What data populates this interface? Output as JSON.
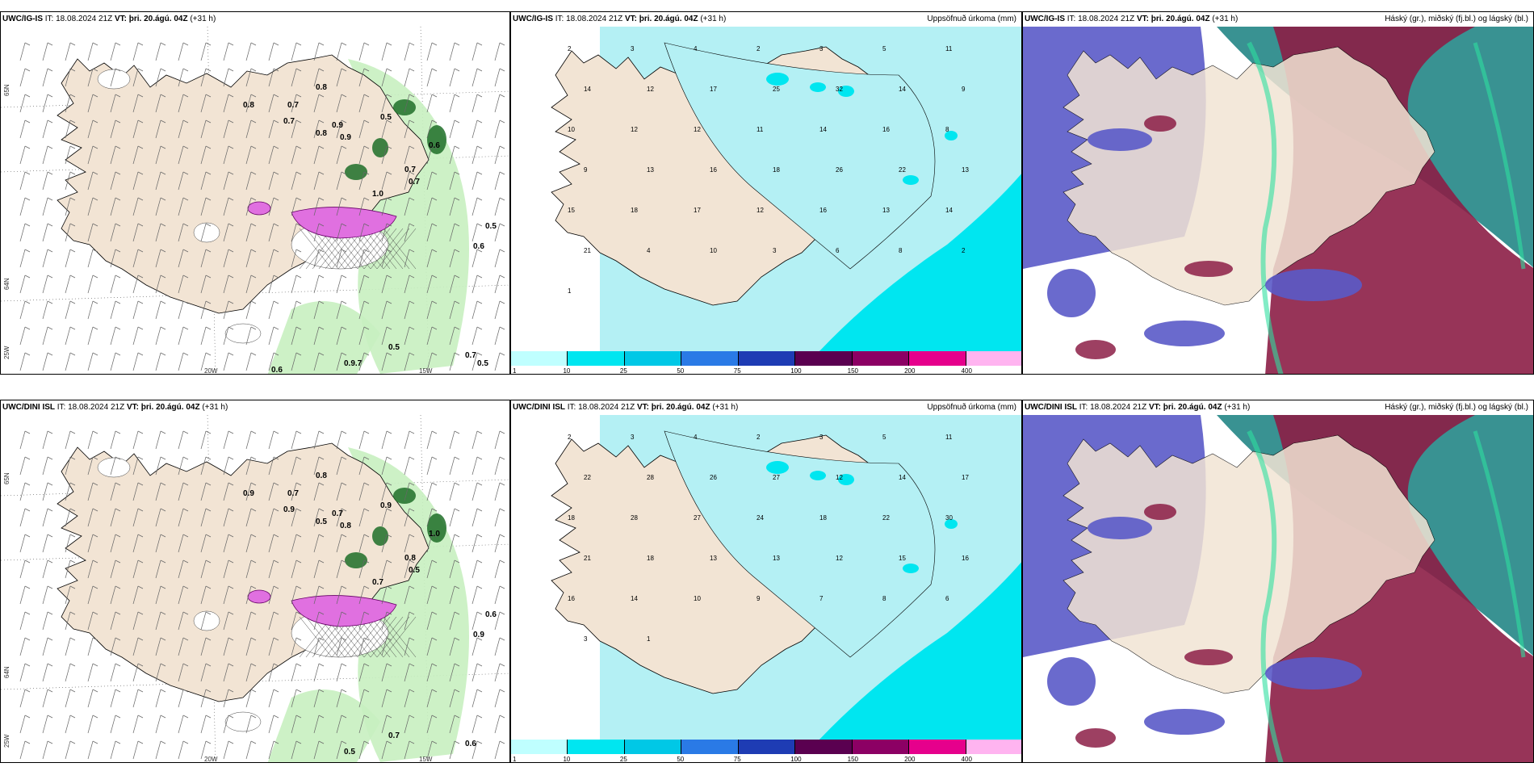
{
  "rows": [
    {
      "model": "UWC/IG-IS",
      "it_label": "IT:",
      "it_value": "18.08.2024 21Z",
      "vt_label": "VT:",
      "vt_value": "þri. 20.ágú. 04Z",
      "lead": "(+31 h)",
      "wind_labels": [
        "0.8",
        "0.7",
        "0.8",
        "0.9",
        "0.5",
        "0.7",
        "0.8",
        "0.7",
        "0.9",
        "0.6",
        "1.0",
        "0.7",
        "0.5",
        "0.6",
        "0.5",
        "0.9.7",
        "0.7",
        "0.5",
        "0.6"
      ],
      "precip_numbers": [
        "2",
        "3",
        "4",
        "2",
        "3",
        "5",
        "11",
        "14",
        "12",
        "17",
        "25",
        "32",
        "14",
        "9",
        "10",
        "12",
        "12",
        "11",
        "14",
        "16",
        "8",
        "9",
        "13",
        "16",
        "18",
        "26",
        "22",
        "13",
        "15",
        "18",
        "17",
        "12",
        "16",
        "13",
        "14",
        "21",
        "4",
        "10",
        "3",
        "6",
        "8",
        "2",
        "1"
      ]
    },
    {
      "model": "UWC/DINI ISL",
      "it_label": "IT:",
      "it_value": "18.08.2024 21Z",
      "vt_label": "VT:",
      "vt_value": "þri. 20.ágú. 04Z",
      "lead": "(+31 h)",
      "wind_labels": [
        "0.9",
        "0.7",
        "0.8",
        "0.7",
        "0.9",
        "0.8",
        "0.5",
        "0.9",
        "0.8",
        "1.0",
        "0.7",
        "0.5",
        "0.6",
        "0.9",
        "0.7",
        "0.5",
        "0.6"
      ],
      "precip_numbers": [
        "2",
        "3",
        "4",
        "2",
        "3",
        "5",
        "11",
        "22",
        "28",
        "26",
        "27",
        "12",
        "14",
        "17",
        "18",
        "28",
        "27",
        "24",
        "18",
        "22",
        "30",
        "21",
        "18",
        "13",
        "13",
        "12",
        "15",
        "16",
        "16",
        "14",
        "10",
        "9",
        "7",
        "8",
        "6",
        "3",
        "1"
      ]
    }
  ],
  "precip_title": "Uppsöfnuð úrkoma (mm)",
  "cloud_title": "Háský (gr.), miðský (fj.bl.) og lágský (bl.)",
  "lon_ticks": [
    "20W",
    "15W",
    "25W"
  ],
  "lat_ticks": [
    "65N",
    "64N"
  ],
  "colorbar": {
    "labels": [
      "1",
      "10",
      "25",
      "50",
      "75",
      "100",
      "150",
      "200",
      "400"
    ],
    "colors": [
      "#bfffff",
      "#00e6f0",
      "#00c8e6",
      "#2a7ae6",
      "#1e3cb4",
      "#5a0050",
      "#8c0064",
      "#e6008c",
      "#ffb4f0"
    ]
  },
  "colors": {
    "land": "#f2e4d4",
    "sea": "#ffffff",
    "precip_light": "#b4f0f4",
    "precip_mid": "#00e6f0",
    "green_light": "#c8f0c0",
    "green_dark": "#1e6e28",
    "magenta": "#e070e0",
    "cloud_high": "#2e8c8c",
    "cloud_mid": "#5a5ac8",
    "cloud_low": "#8c1e46"
  }
}
